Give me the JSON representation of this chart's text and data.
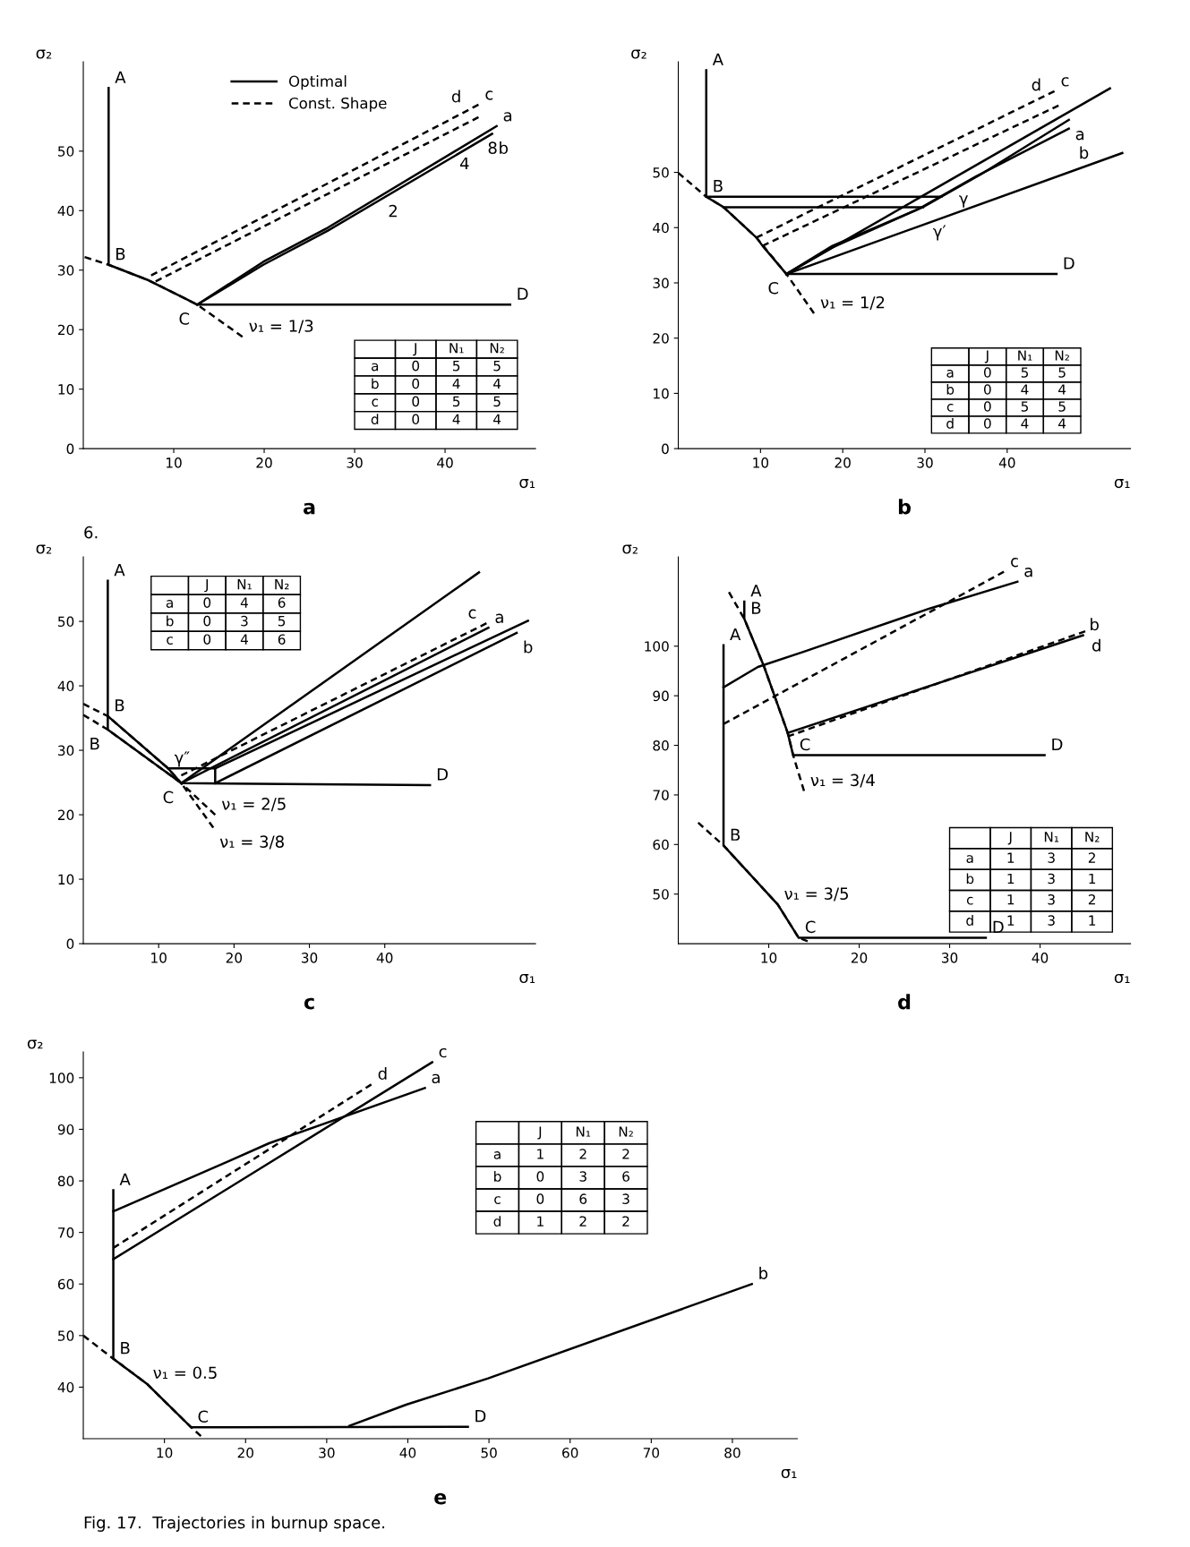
{
  "chart_data": [
    {
      "type": "line",
      "title": "a",
      "xlabel": "σ₁",
      "ylabel": "σ₂",
      "xlim": [
        0,
        50
      ],
      "ylim": [
        0,
        65
      ],
      "xticks": [
        10,
        20,
        30,
        40
      ],
      "yticks": [
        0,
        10,
        20,
        30,
        40,
        50
      ],
      "grid": false,
      "legend": "top",
      "line_style": "solid",
      "series": [
        {
          "name": "Optimal",
          "color": "#000000",
          "x": [
            2.8,
            2.8,
            7.2,
            11.3,
            12.6,
            47.2
          ],
          "values": [
            60.6,
            30.9,
            28.3,
            25.2,
            24.2,
            24.2
          ]
        },
        {
          "color": "#000000",
          "x": [
            12.6,
            19.9,
            27,
            45.7
          ],
          "values": [
            24.2,
            31.4,
            37.1,
            54.2
          ]
        },
        {
          "color": "#000000",
          "x": [
            12.6,
            19.9,
            27,
            45.2
          ],
          "values": [
            24.2,
            30.9,
            36.6,
            52.9
          ]
        },
        {
          "name": "Const. Shape",
          "color": "#000000",
          "line_style": "dashed",
          "x": [
            7.5,
            43.7
          ],
          "values": [
            29.1,
            57.8
          ]
        },
        {
          "color": "#000000",
          "line_style": "dashed",
          "x": [
            8,
            43.7
          ],
          "values": [
            28.1,
            55.7
          ]
        },
        {
          "color": "#000000",
          "line_style": "dashed",
          "x": [
            0.15,
            2.8,
            7.2,
            11.3,
            12.6,
            17.6
          ],
          "values": [
            32.2,
            30.9,
            28.3,
            25.2,
            24.2,
            18.8
          ]
        }
      ],
      "annotations": [
        {
          "text": "A",
          "x": 2.8,
          "y": 60.6
        },
        {
          "text": "B",
          "x": 2.8,
          "y": 30.9
        },
        {
          "text": "C",
          "x": 12.6,
          "y": 24.2
        },
        {
          "text": "D",
          "x": 47.2,
          "y": 24.2
        },
        {
          "text": "a",
          "x": 45.7,
          "y": 54.2
        },
        {
          "text": "b",
          "x": 45.2,
          "y": 52.9
        },
        {
          "text": "c",
          "x": 43.7,
          "y": 57.8
        },
        {
          "text": "d",
          "x": 43.7,
          "y": 55.7
        },
        {
          "text": "2",
          "x": 33,
          "y": 42.3
        },
        {
          "text": "4",
          "x": 40.9,
          "y": 50.3
        },
        {
          "text": "8",
          "x": 44,
          "y": 52.9
        },
        {
          "text": "ν₁ = 1/3",
          "x": 17.6,
          "y": 18.8
        },
        "6.",
        "\tJ\tN₁\tN₂",
        "a\t0\t5\t5",
        "b\t0\t4\t4",
        "c\t0\t5\t5",
        "d\t0\t4\t4"
      ]
    },
    {
      "type": "line",
      "title": "b",
      "xlabel": "σ₁",
      "ylabel": "σ₂",
      "xlim": [
        0,
        55
      ],
      "ylim": [
        0,
        70
      ],
      "xticks": [
        10,
        20,
        30,
        40
      ],
      "yticks": [
        0,
        10,
        20,
        30,
        40,
        50
      ],
      "grid": false,
      "line_style": "solid",
      "series": [
        {
          "color": "#000000",
          "x": [
            3.4,
            3.4,
            5.5,
            9.5,
            10.25,
            13.15,
            46
          ],
          "values": [
            68.5,
            45.6,
            43.7,
            38.2,
            36.7,
            31.6,
            31.6
          ]
        },
        {
          "color": "#000000",
          "x": [
            3.4,
            32
          ],
          "values": [
            45.6,
            45.6
          ]
        },
        {
          "color": "#000000",
          "x": [
            5.5,
            29.75
          ],
          "values": [
            43.7,
            43.7
          ]
        },
        {
          "color": "#000000",
          "x": [
            13.15,
            18.75,
            29.75,
            32,
            36.75,
            47.5
          ],
          "values": [
            31.6,
            36.7,
            43.7,
            45.6,
            49.6,
            59.5
          ]
        },
        {
          "color": "#000000",
          "x": [
            13.15,
            18.75,
            29.25,
            36.25,
            47.5
          ],
          "values": [
            31.6,
            36.4,
            43.4,
            49.3,
            57.9
          ]
        },
        {
          "color": "#000000",
          "x": [
            13.15,
            52.5
          ],
          "values": [
            31.6,
            65.2
          ]
        },
        {
          "color": "#000000",
          "x": [
            13.15,
            54
          ],
          "values": [
            31.6,
            53.5
          ]
        },
        {
          "color": "#000000",
          "line_style": "dashed",
          "x": [
            9.5,
            45.75
          ],
          "values": [
            38.2,
            64.7
          ]
        },
        {
          "color": "#000000",
          "line_style": "dashed",
          "x": [
            10.25,
            46.25
          ],
          "values": [
            36.7,
            62.1
          ]
        },
        {
          "color": "#000000",
          "line_style": "dashed",
          "x": [
            0,
            3.4,
            5.5,
            9.5,
            13.15,
            16.5
          ],
          "values": [
            49.9,
            45.6,
            43.7,
            38.2,
            31.6,
            24.5
          ]
        }
      ],
      "annotations": [
        {
          "text": "A",
          "x": 3.4,
          "y": 68.5
        },
        {
          "text": "B",
          "x": 3.4,
          "y": 45.6
        },
        {
          "text": "C",
          "x": 13.15,
          "y": 31.6
        },
        {
          "text": "D",
          "x": 46,
          "y": 31.6
        },
        {
          "text": "a",
          "x": 47.5,
          "y": 59.5
        },
        {
          "text": "b",
          "x": 47.5,
          "y": 57.9
        },
        {
          "text": "c",
          "x": 45.75,
          "y": 64.7
        },
        {
          "text": "d",
          "x": 46.25,
          "y": 62.1
        },
        {
          "text": "γ",
          "x": 32,
          "y": 45.6
        },
        {
          "text": "γ′",
          "x": 29.75,
          "y": 43.7
        },
        {
          "text": "ν₁ = 1/2",
          "x": 16.5,
          "y": 24.5
        },
        "\tJ\tN₁\tN₂",
        "a\t0\t5\t5",
        "b\t0\t4\t4",
        "c\t0\t5\t5",
        "d\t0\t4\t4"
      ]
    },
    {
      "type": "line",
      "title": "c",
      "xlabel": "σ₁",
      "ylabel": "σ₂",
      "xlim": [
        0,
        60
      ],
      "ylim": [
        0,
        60
      ],
      "xticks": [
        10,
        20,
        30,
        40
      ],
      "yticks": [
        0,
        10,
        20,
        30,
        40,
        50
      ],
      "grid": false,
      "line_style": "solid",
      "series": [
        {
          "color": "#000000",
          "x": [
            3.25,
            3.25,
            13,
            46
          ],
          "values": [
            56.3,
            33.2,
            24.9,
            24.6
          ]
        },
        {
          "color": "#000000",
          "x": [
            3.25,
            11.25,
            13
          ],
          "values": [
            35.3,
            27.2,
            24.9
          ]
        },
        {
          "color": "#000000",
          "x": [
            11.25,
            17.5,
            17.5
          ],
          "values": [
            27.2,
            27.2,
            24.9
          ]
        },
        {
          "color": "#000000",
          "x": [
            13,
            53.75
          ],
          "values": [
            24.9,
            49
          ]
        },
        {
          "color": "#000000",
          "x": [
            17.5,
            57.5
          ],
          "values": [
            24.9,
            48.2
          ]
        },
        {
          "color": "#000000",
          "x": [
            17.5,
            59
          ],
          "values": [
            27.2,
            50.1
          ]
        },
        {
          "color": "#000000",
          "x": [
            13,
            52.5
          ],
          "values": [
            24.9,
            57.6
          ]
        },
        {
          "color": "#000000",
          "line_style": "dashed",
          "x": [
            13,
            53.5
          ],
          "values": [
            26.1,
            49.7
          ]
        },
        {
          "color": "#000000",
          "line_style": "dashed",
          "x": [
            0,
            3.25,
            11.25,
            13,
            17.5
          ],
          "values": [
            37.2,
            35.3,
            27.2,
            24.9,
            20
          ]
        },
        {
          "color": "#000000",
          "line_style": "dashed",
          "x": [
            0,
            3.25,
            13,
            17.25
          ],
          "values": [
            35.5,
            33.2,
            24.9,
            18
          ]
        }
      ],
      "annotations": [
        {
          "text": "A",
          "x": 3.25,
          "y": 56.3
        },
        {
          "text": "B",
          "x": 3.25,
          "y": 35.3
        },
        {
          "text": "B",
          "x": 3.25,
          "y": 33.2
        },
        {
          "text": "C",
          "x": 13,
          "y": 24.9
        },
        {
          "text": "D",
          "x": 46,
          "y": 24.6
        },
        {
          "text": "a",
          "x": 53.75,
          "y": 49
        },
        {
          "text": "b",
          "x": 57.5,
          "y": 48.2
        },
        {
          "text": "c",
          "x": 53.5,
          "y": 49.7
        },
        {
          "text": "γ″",
          "x": 11.25,
          "y": 27.2
        },
        {
          "text": "ν₁ = 2/5",
          "x": 17.5,
          "y": 20
        },
        {
          "text": "ν₁ = 3/8",
          "x": 17.25,
          "y": 18
        },
        "\tJ\tN₁\tN₂",
        "a\t0\t4\t6",
        "b\t0\t3\t5",
        "c\t0\t4\t6"
      ]
    },
    {
      "type": "line",
      "title": "d",
      "xlabel": "σ₁",
      "ylabel": "σ₂",
      "xlim": [
        0,
        50
      ],
      "ylim": [
        40,
        118
      ],
      "xticks": [
        10,
        20,
        30,
        40
      ],
      "yticks": [
        50,
        60,
        70,
        80,
        90,
        100
      ],
      "grid": false,
      "line_style": "solid",
      "series": [
        {
          "color": "#000000",
          "x": [
            5,
            5,
            11,
            13.3,
            34
          ],
          "values": [
            100.2,
            59.8,
            47.9,
            41.2,
            41.2
          ]
        },
        {
          "color": "#000000",
          "x": [
            7.3,
            7.3,
            9.5,
            12.1,
            12.7,
            40.5
          ],
          "values": [
            109,
            105.5,
            95.8,
            82.5,
            78,
            78
          ]
        },
        {
          "color": "#000000",
          "x": [
            5,
            8.8,
            13.9,
            27.8,
            37.5
          ],
          "values": [
            91.7,
            95.8,
            98.9,
            107.6,
            113
          ]
        },
        {
          "color": "#000000",
          "x": [
            12.1,
            44.75
          ],
          "values": [
            82.5,
            102.2
          ]
        },
        {
          "color": "#000000",
          "line_style": "dashed",
          "x": [
            5,
            36
          ],
          "values": [
            84.3,
            115
          ]
        },
        {
          "color": "#000000",
          "line_style": "dashed",
          "x": [
            12.1,
            45
          ],
          "values": [
            81.8,
            103
          ]
        },
        {
          "color": "#000000",
          "line_style": "dashed",
          "x": [
            5.6,
            7.3,
            9.5,
            12.1,
            12.7,
            13.9
          ],
          "values": [
            110.9,
            105.5,
            95.8,
            82.5,
            78,
            70.8
          ]
        },
        {
          "color": "#000000",
          "line_style": "dashed",
          "x": [
            2.2,
            5,
            11,
            13.3,
            14.3
          ],
          "values": [
            64.4,
            59.8,
            47.9,
            41.2,
            40.5
          ]
        }
      ],
      "annotations": [
        {
          "text": "A",
          "x": 5,
          "y": 100.2
        },
        {
          "text": "B",
          "x": 5,
          "y": 59.8
        },
        {
          "text": "C",
          "x": 13.3,
          "y": 41.2
        },
        {
          "text": "D",
          "x": 34,
          "y": 41.2
        },
        {
          "text": "A",
          "x": 7.3,
          "y": 109
        },
        {
          "text": "B",
          "x": 7.3,
          "y": 105.5
        },
        {
          "text": "C",
          "x": 12.7,
          "y": 78
        },
        {
          "text": "D",
          "x": 40.5,
          "y": 78
        },
        {
          "text": "a",
          "x": 37.5,
          "y": 113
        },
        {
          "text": "b",
          "x": 44.75,
          "y": 102.2
        },
        {
          "text": "c",
          "x": 36,
          "y": 115
        },
        {
          "text": "d",
          "x": 45,
          "y": 103
        },
        {
          "text": "ν₁ = 3/4",
          "x": 13.9,
          "y": 70.8
        },
        {
          "text": "ν₁ = 3/5",
          "x": 11,
          "y": 47.9
        },
        "\tJ\tN₁\tN₂",
        "a\t1\t3\t2",
        "b\t1\t3\t1",
        "c\t1\t3\t2",
        "d\t1\t3\t1"
      ]
    },
    {
      "type": "line",
      "title": "e",
      "xlabel": "σ₁",
      "ylabel": "σ₂",
      "xlim": [
        0,
        88
      ],
      "ylim": [
        30,
        105
      ],
      "xticks": [
        10,
        20,
        30,
        40,
        50,
        60,
        70,
        80
      ],
      "yticks": [
        40,
        50,
        60,
        70,
        80,
        90,
        100
      ],
      "grid": false,
      "line_style": "solid",
      "series": [
        {
          "color": "#000000",
          "x": [
            3.7,
            3.7,
            7.8,
            13.3,
            47.4
          ],
          "values": [
            78.2,
            45.5,
            40.7,
            32.2,
            32.3
          ]
        },
        {
          "color": "#000000",
          "x": [
            32.8,
            39.8,
            49.9,
            82.4
          ],
          "values": [
            32.5,
            36.6,
            41.7,
            60.0
          ]
        },
        {
          "color": "#000000",
          "x": [
            3.7,
            17.9,
            22.9,
            42.1
          ],
          "values": [
            74.1,
            83.8,
            87.3,
            98
          ]
        },
        {
          "color": "#000000",
          "x": [
            3.7,
            43
          ],
          "values": [
            64.8,
            103
          ]
        },
        {
          "color": "#000000",
          "line_style": "dashed",
          "x": [
            3.7,
            35.5
          ],
          "values": [
            67,
            98.7
          ]
        },
        {
          "color": "#000000",
          "line_style": "dashed",
          "x": [
            0,
            3.7,
            7.8,
            13.3,
            14.5
          ],
          "values": [
            50,
            45.5,
            40.7,
            32.2,
            30.5
          ]
        }
      ],
      "annotations": [
        {
          "text": "A",
          "x": 3.7,
          "y": 78.2
        },
        {
          "text": "B",
          "x": 3.7,
          "y": 45.5
        },
        {
          "text": "C",
          "x": 13.3,
          "y": 32.2
        },
        {
          "text": "D",
          "x": 47.4,
          "y": 32.3
        },
        {
          "text": "b",
          "x": 82.4,
          "y": 60
        },
        {
          "text": "a",
          "x": 42.1,
          "y": 98
        },
        {
          "text": "c",
          "x": 43,
          "y": 103
        },
        {
          "text": "d",
          "x": 35.5,
          "y": 98.7
        },
        {
          "text": "ν₁ = 0.5",
          "x": 7.8,
          "y": 40.7
        },
        "\tJ\tN₁\tN₂",
        "a\t1\t2\t2",
        "b\t0\t3\t6",
        "c\t0\t6\t3",
        "d\t1\t2\t2",
        "Fig. 17.  Trajectories in burnup space."
      ]
    }
  ]
}
